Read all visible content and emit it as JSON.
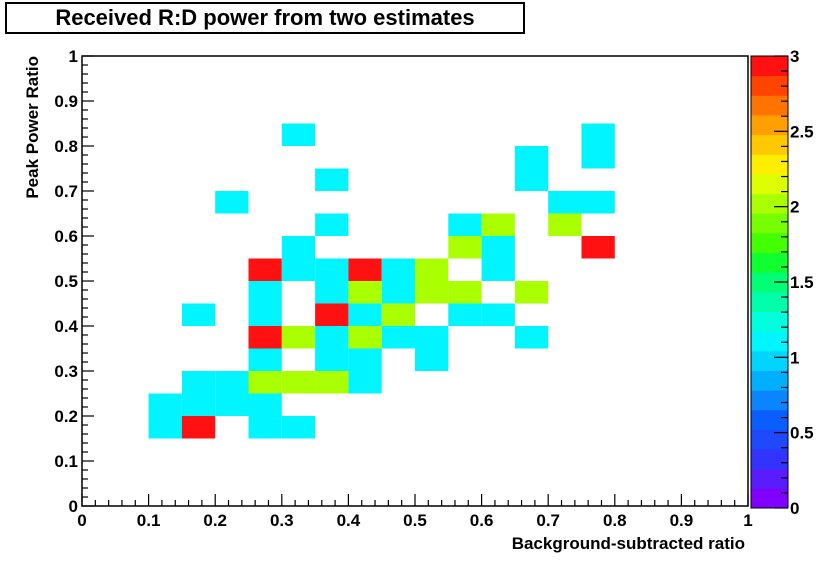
{
  "chart_data": {
    "type": "heatmap",
    "title": "Received R:D power from two estimates",
    "xlabel": "Background-subtracted ratio",
    "ylabel": "Peak Power Ratio",
    "xlim": [
      0,
      1
    ],
    "ylim": [
      0,
      1
    ],
    "bins": {
      "nx": 20,
      "ny": 20
    },
    "x_tick_labels": [
      "0",
      "0.1",
      "0.2",
      "0.3",
      "0.4",
      "0.5",
      "0.6",
      "0.7",
      "0.8",
      "0.9",
      "1"
    ],
    "y_tick_labels": [
      "0",
      "0.1",
      "0.2",
      "0.3",
      "0.4",
      "0.5",
      "0.6",
      "0.7",
      "0.8",
      "0.9",
      "1"
    ],
    "colorbar": {
      "range": [
        0,
        3
      ],
      "tick_labels": [
        "0",
        "0.5",
        "1",
        "1.5",
        "2",
        "2.5",
        "3"
      ],
      "palette": [
        "#7f00ff",
        "#5a1bff",
        "#3333ff",
        "#1f49ff",
        "#0a5eff",
        "#0a84ff",
        "#00b0ff",
        "#00d4ff",
        "#00f5ff",
        "#00ffdd",
        "#00ffaa",
        "#00ff77",
        "#10ff30",
        "#44ff00",
        "#77ff00",
        "#aaff00",
        "#ddff00",
        "#ffee00",
        "#ffc800",
        "#ffa000",
        "#ff7400",
        "#ff4400",
        "#ff1111"
      ]
    },
    "cells": [
      {
        "x": 0.125,
        "y": 0.175,
        "v": 1
      },
      {
        "x": 0.175,
        "y": 0.175,
        "v": 3
      },
      {
        "x": 0.275,
        "y": 0.175,
        "v": 1
      },
      {
        "x": 0.325,
        "y": 0.175,
        "v": 1
      },
      {
        "x": 0.125,
        "y": 0.225,
        "v": 1
      },
      {
        "x": 0.175,
        "y": 0.225,
        "v": 1
      },
      {
        "x": 0.225,
        "y": 0.225,
        "v": 1
      },
      {
        "x": 0.275,
        "y": 0.225,
        "v": 1
      },
      {
        "x": 0.175,
        "y": 0.275,
        "v": 1
      },
      {
        "x": 0.225,
        "y": 0.275,
        "v": 1
      },
      {
        "x": 0.275,
        "y": 0.275,
        "v": 2
      },
      {
        "x": 0.325,
        "y": 0.275,
        "v": 2
      },
      {
        "x": 0.375,
        "y": 0.275,
        "v": 2
      },
      {
        "x": 0.425,
        "y": 0.275,
        "v": 1
      },
      {
        "x": 0.275,
        "y": 0.325,
        "v": 1
      },
      {
        "x": 0.375,
        "y": 0.325,
        "v": 1
      },
      {
        "x": 0.425,
        "y": 0.325,
        "v": 1
      },
      {
        "x": 0.525,
        "y": 0.325,
        "v": 1
      },
      {
        "x": 0.275,
        "y": 0.375,
        "v": 3
      },
      {
        "x": 0.325,
        "y": 0.375,
        "v": 2
      },
      {
        "x": 0.375,
        "y": 0.375,
        "v": 1
      },
      {
        "x": 0.425,
        "y": 0.375,
        "v": 2
      },
      {
        "x": 0.475,
        "y": 0.375,
        "v": 1
      },
      {
        "x": 0.525,
        "y": 0.375,
        "v": 1
      },
      {
        "x": 0.675,
        "y": 0.375,
        "v": 1
      },
      {
        "x": 0.175,
        "y": 0.425,
        "v": 1
      },
      {
        "x": 0.275,
        "y": 0.425,
        "v": 1
      },
      {
        "x": 0.375,
        "y": 0.425,
        "v": 3
      },
      {
        "x": 0.425,
        "y": 0.425,
        "v": 1
      },
      {
        "x": 0.475,
        "y": 0.425,
        "v": 2
      },
      {
        "x": 0.575,
        "y": 0.425,
        "v": 1
      },
      {
        "x": 0.625,
        "y": 0.425,
        "v": 1
      },
      {
        "x": 0.275,
        "y": 0.475,
        "v": 1
      },
      {
        "x": 0.375,
        "y": 0.475,
        "v": 1
      },
      {
        "x": 0.425,
        "y": 0.475,
        "v": 2
      },
      {
        "x": 0.475,
        "y": 0.475,
        "v": 1
      },
      {
        "x": 0.525,
        "y": 0.475,
        "v": 2
      },
      {
        "x": 0.575,
        "y": 0.475,
        "v": 2
      },
      {
        "x": 0.675,
        "y": 0.475,
        "v": 2
      },
      {
        "x": 0.275,
        "y": 0.525,
        "v": 3
      },
      {
        "x": 0.325,
        "y": 0.525,
        "v": 1
      },
      {
        "x": 0.375,
        "y": 0.525,
        "v": 1
      },
      {
        "x": 0.425,
        "y": 0.525,
        "v": 3
      },
      {
        "x": 0.475,
        "y": 0.525,
        "v": 1
      },
      {
        "x": 0.525,
        "y": 0.525,
        "v": 2
      },
      {
        "x": 0.625,
        "y": 0.525,
        "v": 1
      },
      {
        "x": 0.325,
        "y": 0.575,
        "v": 1
      },
      {
        "x": 0.575,
        "y": 0.575,
        "v": 2
      },
      {
        "x": 0.625,
        "y": 0.575,
        "v": 1
      },
      {
        "x": 0.775,
        "y": 0.575,
        "v": 3
      },
      {
        "x": 0.375,
        "y": 0.625,
        "v": 1
      },
      {
        "x": 0.575,
        "y": 0.625,
        "v": 1
      },
      {
        "x": 0.625,
        "y": 0.625,
        "v": 2
      },
      {
        "x": 0.725,
        "y": 0.625,
        "v": 2
      },
      {
        "x": 0.225,
        "y": 0.675,
        "v": 1
      },
      {
        "x": 0.725,
        "y": 0.675,
        "v": 1
      },
      {
        "x": 0.775,
        "y": 0.675,
        "v": 1
      },
      {
        "x": 0.375,
        "y": 0.725,
        "v": 1
      },
      {
        "x": 0.675,
        "y": 0.725,
        "v": 1
      },
      {
        "x": 0.675,
        "y": 0.775,
        "v": 1
      },
      {
        "x": 0.775,
        "y": 0.775,
        "v": 1
      },
      {
        "x": 0.325,
        "y": 0.825,
        "v": 1
      },
      {
        "x": 0.775,
        "y": 0.825,
        "v": 1
      }
    ],
    "colors": {
      "v1": "#00f5ff",
      "v2": "#aaff00",
      "v3": "#ff1111"
    }
  }
}
